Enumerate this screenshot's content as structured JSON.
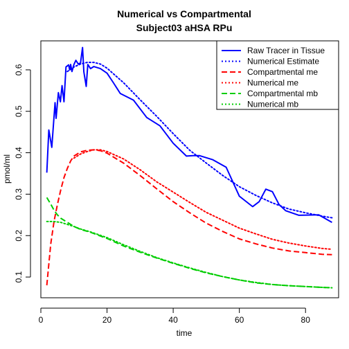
{
  "chart_data": {
    "type": "line",
    "title": "Numerical vs Compartmental",
    "subtitle": "Subject03 aHSA RPu",
    "xlabel": "time",
    "ylabel": "pmol/ml",
    "xlim": [
      0,
      90
    ],
    "ylim": [
      0.05,
      0.67
    ],
    "xticks": [
      "0",
      "20",
      "40",
      "60",
      "80"
    ],
    "yticks": [
      "0.1",
      "0.2",
      "0.3",
      "0.4",
      "0.5",
      "0.6"
    ],
    "grid": false,
    "legend_position": "top-right",
    "series": [
      {
        "name": "Raw Tracer in Tissue",
        "color": "#0000ff",
        "dash": "solid",
        "points": [
          [
            1.8,
            0.352
          ],
          [
            2.4,
            0.455
          ],
          [
            3.3,
            0.413
          ],
          [
            4.3,
            0.521
          ],
          [
            4.6,
            0.483
          ],
          [
            5.3,
            0.545
          ],
          [
            5.9,
            0.523
          ],
          [
            6.4,
            0.562
          ],
          [
            7.0,
            0.523
          ],
          [
            7.6,
            0.607
          ],
          [
            8.4,
            0.612
          ],
          [
            8.7,
            0.6
          ],
          [
            9.0,
            0.613
          ],
          [
            9.4,
            0.596
          ],
          [
            10.0,
            0.613
          ],
          [
            10.6,
            0.623
          ],
          [
            11.3,
            0.614
          ],
          [
            12.0,
            0.617
          ],
          [
            12.6,
            0.654
          ],
          [
            13.0,
            0.595
          ],
          [
            13.7,
            0.56
          ],
          [
            14.2,
            0.613
          ],
          [
            15.0,
            0.603
          ],
          [
            16.0,
            0.608
          ],
          [
            18.0,
            0.603
          ],
          [
            20.0,
            0.592
          ],
          [
            22.0,
            0.568
          ],
          [
            24.0,
            0.543
          ],
          [
            28.0,
            0.527
          ],
          [
            32.0,
            0.485
          ],
          [
            36.0,
            0.465
          ],
          [
            40.0,
            0.423
          ],
          [
            44.0,
            0.392
          ],
          [
            46.0,
            0.393
          ],
          [
            48.0,
            0.393
          ],
          [
            52.0,
            0.383
          ],
          [
            56.0,
            0.365
          ],
          [
            60.0,
            0.295
          ],
          [
            64.0,
            0.27
          ],
          [
            66.0,
            0.282
          ],
          [
            68.0,
            0.312
          ],
          [
            70.0,
            0.306
          ],
          [
            72.0,
            0.275
          ],
          [
            74.0,
            0.26
          ],
          [
            78.0,
            0.249
          ],
          [
            84.0,
            0.25
          ],
          [
            88.0,
            0.232
          ]
        ]
      },
      {
        "name": "Numerical Estimate",
        "color": "#0000ff",
        "dash": "dotted",
        "points": [
          [
            8,
            0.596
          ],
          [
            10,
            0.607
          ],
          [
            12,
            0.614
          ],
          [
            14,
            0.618
          ],
          [
            16,
            0.618
          ],
          [
            18,
            0.614
          ],
          [
            20,
            0.604
          ],
          [
            25,
            0.569
          ],
          [
            30,
            0.528
          ],
          [
            35,
            0.488
          ],
          [
            40,
            0.446
          ],
          [
            45,
            0.406
          ],
          [
            50,
            0.375
          ],
          [
            55,
            0.345
          ],
          [
            60,
            0.318
          ],
          [
            65,
            0.297
          ],
          [
            70,
            0.279
          ],
          [
            75,
            0.264
          ],
          [
            80,
            0.255
          ],
          [
            85,
            0.247
          ],
          [
            88,
            0.243
          ]
        ]
      },
      {
        "name": "Compartmental me",
        "color": "#ff0000",
        "dash": "dashed",
        "points": [
          [
            1.8,
            0.08
          ],
          [
            3,
            0.18
          ],
          [
            4,
            0.235
          ],
          [
            5,
            0.275
          ],
          [
            6,
            0.31
          ],
          [
            7,
            0.34
          ],
          [
            8,
            0.362
          ],
          [
            9,
            0.38
          ],
          [
            10,
            0.392
          ],
          [
            12,
            0.402
          ],
          [
            14,
            0.406
          ],
          [
            16,
            0.407
          ],
          [
            18,
            0.405
          ],
          [
            20,
            0.399
          ],
          [
            25,
            0.375
          ],
          [
            30,
            0.345
          ],
          [
            35,
            0.313
          ],
          [
            40,
            0.282
          ],
          [
            45,
            0.255
          ],
          [
            50,
            0.23
          ],
          [
            55,
            0.21
          ],
          [
            60,
            0.192
          ],
          [
            65,
            0.18
          ],
          [
            70,
            0.17
          ],
          [
            75,
            0.163
          ],
          [
            80,
            0.159
          ],
          [
            85,
            0.155
          ],
          [
            88,
            0.154
          ]
        ]
      },
      {
        "name": "Numerical me",
        "color": "#ff0000",
        "dash": "dotted",
        "points": [
          [
            10,
            0.387
          ],
          [
            12,
            0.397
          ],
          [
            14,
            0.403
          ],
          [
            16,
            0.407
          ],
          [
            18,
            0.407
          ],
          [
            20,
            0.403
          ],
          [
            25,
            0.385
          ],
          [
            30,
            0.359
          ],
          [
            35,
            0.33
          ],
          [
            40,
            0.305
          ],
          [
            45,
            0.28
          ],
          [
            50,
            0.256
          ],
          [
            55,
            0.237
          ],
          [
            60,
            0.218
          ],
          [
            65,
            0.204
          ],
          [
            70,
            0.191
          ],
          [
            75,
            0.182
          ],
          [
            80,
            0.175
          ],
          [
            85,
            0.169
          ],
          [
            88,
            0.167
          ]
        ]
      },
      {
        "name": "Compartmental mb",
        "color": "#00cd00",
        "dash": "dashed",
        "points": [
          [
            1.8,
            0.292
          ],
          [
            3,
            0.276
          ],
          [
            4,
            0.261
          ],
          [
            5,
            0.25
          ],
          [
            6,
            0.242
          ],
          [
            8,
            0.232
          ],
          [
            10,
            0.222
          ],
          [
            12,
            0.215
          ],
          [
            15,
            0.208
          ],
          [
            20,
            0.193
          ],
          [
            25,
            0.175
          ],
          [
            30,
            0.16
          ],
          [
            35,
            0.146
          ],
          [
            40,
            0.133
          ],
          [
            45,
            0.121
          ],
          [
            50,
            0.11
          ],
          [
            55,
            0.101
          ],
          [
            60,
            0.093
          ],
          [
            65,
            0.086
          ],
          [
            70,
            0.082
          ],
          [
            75,
            0.079
          ],
          [
            80,
            0.077
          ],
          [
            85,
            0.075
          ],
          [
            88,
            0.074
          ]
        ]
      },
      {
        "name": "Numerical mb",
        "color": "#00cd00",
        "dash": "dotted",
        "points": [
          [
            1.8,
            0.234
          ],
          [
            4,
            0.234
          ],
          [
            6,
            0.232
          ],
          [
            8,
            0.227
          ],
          [
            10,
            0.222
          ],
          [
            12,
            0.216
          ],
          [
            15,
            0.209
          ],
          [
            20,
            0.195
          ],
          [
            25,
            0.178
          ],
          [
            30,
            0.162
          ],
          [
            35,
            0.147
          ],
          [
            40,
            0.134
          ],
          [
            45,
            0.122
          ],
          [
            50,
            0.111
          ],
          [
            55,
            0.101
          ],
          [
            60,
            0.093
          ],
          [
            65,
            0.087
          ],
          [
            70,
            0.082
          ],
          [
            75,
            0.079
          ],
          [
            80,
            0.077
          ],
          [
            85,
            0.075
          ],
          [
            88,
            0.074
          ]
        ]
      }
    ]
  }
}
